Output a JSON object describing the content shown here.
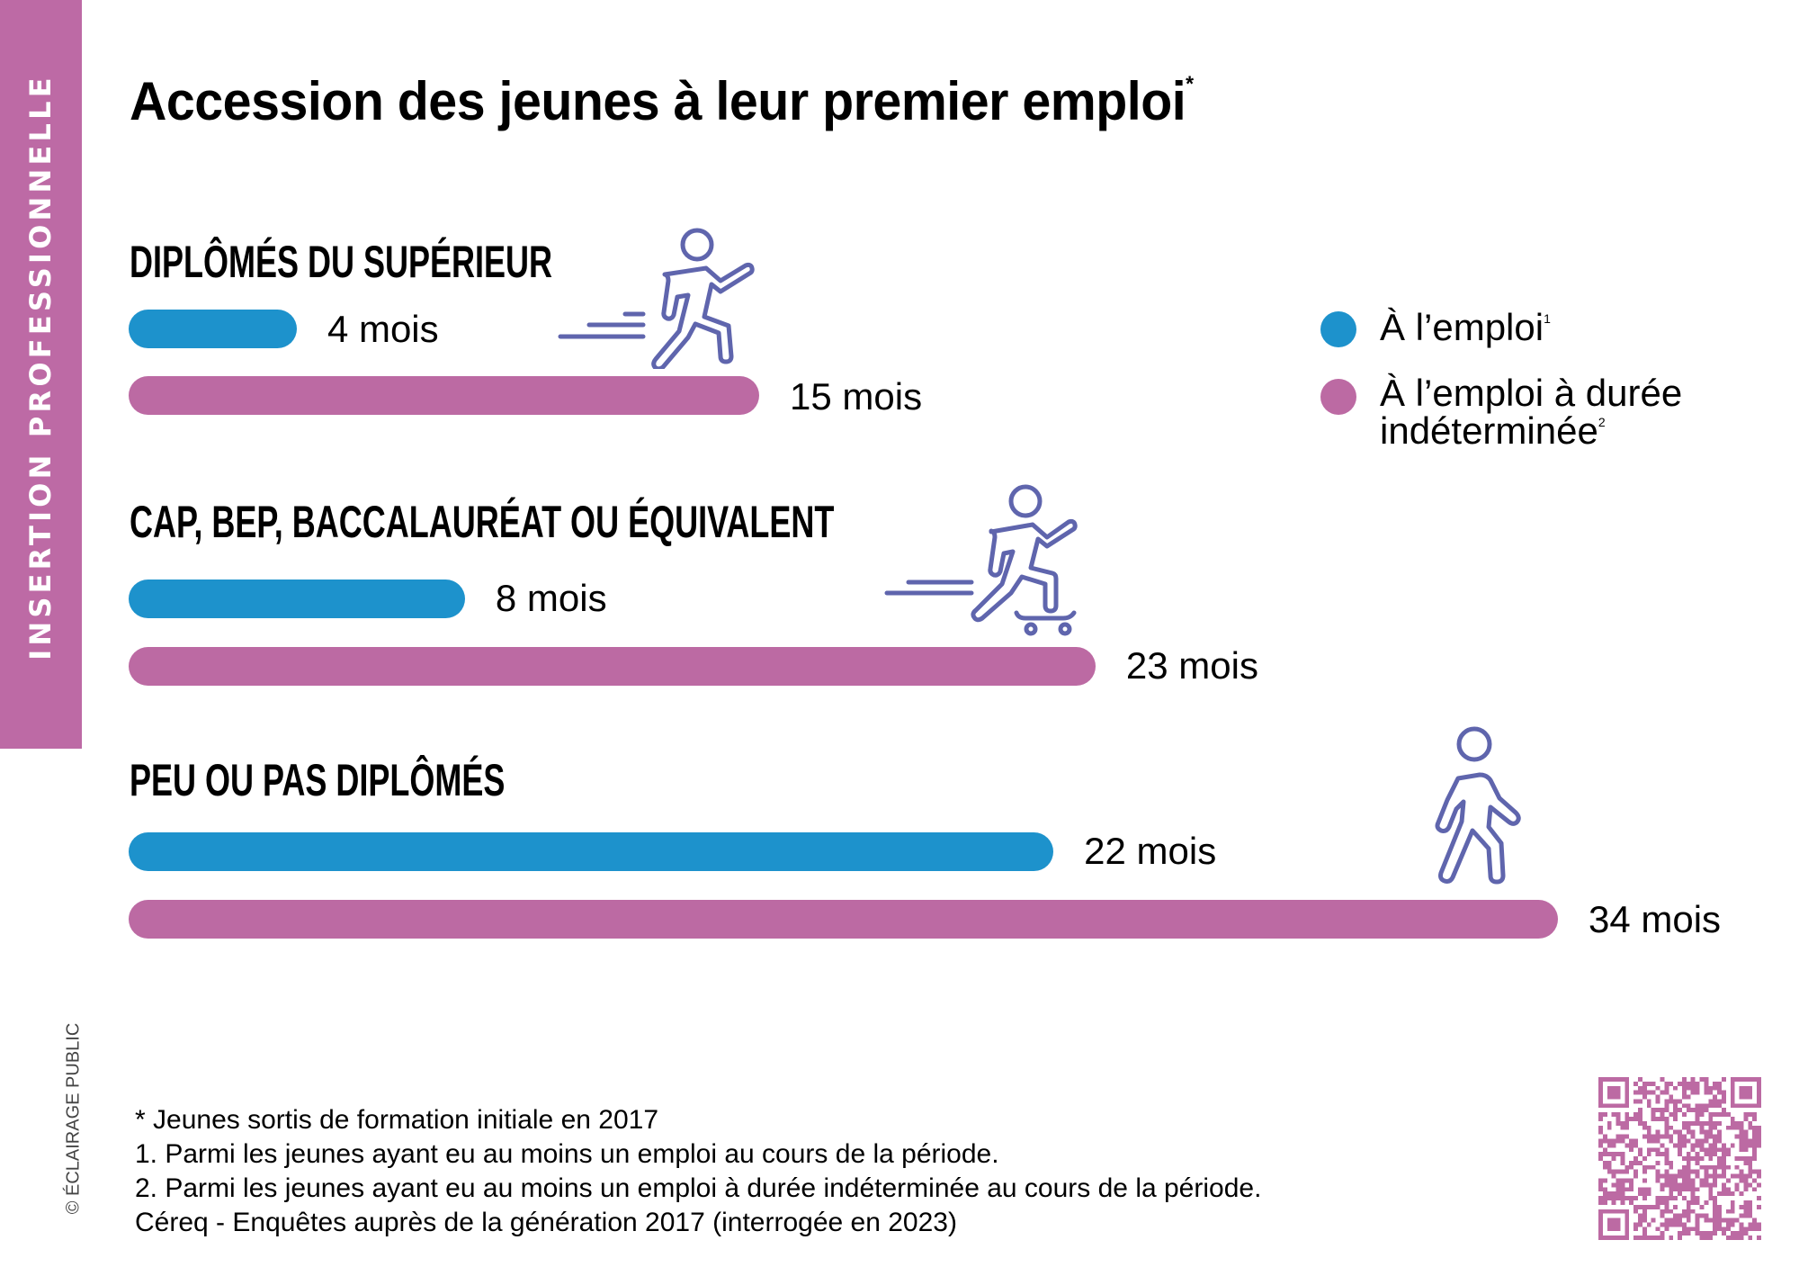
{
  "side_band": {
    "label": "INSERTION PROFESSIONNELLE",
    "color": "#bd6aa5"
  },
  "title": {
    "text": "Accession des jeunes à leur premier emploi",
    "marker": "*"
  },
  "legend": {
    "items": [
      {
        "label": "À l’emploi",
        "note": "1",
        "color": "#1d92cc"
      },
      {
        "label_line1": "À l’emploi à durée",
        "label_line2": "indéterminée",
        "note": "2",
        "color": "#bc6aa3"
      }
    ]
  },
  "chart_data": {
    "type": "bar",
    "orientation": "horizontal",
    "title": "Accession des jeunes à leur premier emploi*",
    "unit": "mois",
    "categories": [
      "DIPLÔMÉS DU SUPÉRIEUR",
      "CAP, BEP, BACCALAURÉAT OU ÉQUIVALENT",
      "PEU OU PAS DIPLÔMÉS"
    ],
    "series": [
      {
        "name": "À l’emploi",
        "color": "#1d92cc",
        "values": [
          4,
          8,
          22
        ],
        "labels": [
          "4 mois",
          "8 mois",
          "22 mois"
        ]
      },
      {
        "name": "À l’emploi à durée indéterminée",
        "color": "#bc6aa3",
        "values": [
          15,
          23,
          34
        ],
        "labels": [
          "15 mois",
          "23 mois",
          "34 mois"
        ]
      }
    ],
    "xlim": [
      0,
      34
    ],
    "grid": false,
    "legend": "right"
  },
  "icons": {
    "group1": "runner-icon",
    "group2": "skateboarder-icon",
    "group3": "walker-icon",
    "color": "#5f65ad"
  },
  "footnotes": [
    "* Jeunes sortis de formation initiale en 2017",
    "1. Parmi les jeunes ayant eu au moins un emploi au cours de la période.",
    "2. Parmi les jeunes ayant eu au moins un emploi à durée indéterminée au cours de la période.",
    "Céreq - Enquêtes auprès de la génération 2017 (interrogée en 2023)"
  ],
  "copyright": "© ÉCLAIRAGE PUBLIC",
  "qr_code": {
    "color": "#bc6aa3"
  }
}
